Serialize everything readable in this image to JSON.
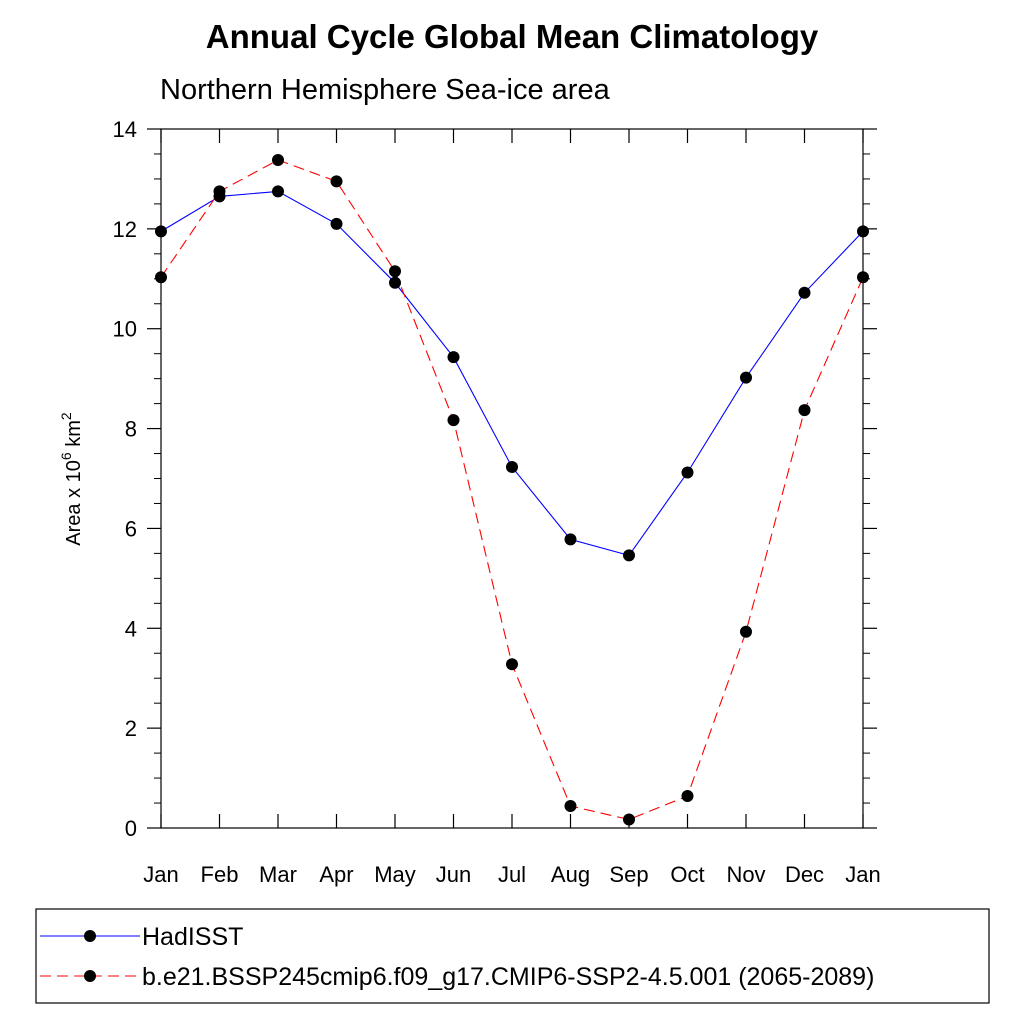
{
  "chart_data": {
    "type": "line",
    "title": "Annual Cycle Global Mean Climatology",
    "subtitle": "Northern Hemisphere Sea-ice area",
    "ylabel": {
      "base": "Area x 10",
      "exp1": "6",
      "unit": " km",
      "exp2": "2"
    },
    "categories": [
      "Jan",
      "Feb",
      "Mar",
      "Apr",
      "May",
      "Jun",
      "Jul",
      "Aug",
      "Sep",
      "Oct",
      "Nov",
      "Dec",
      "Jan"
    ],
    "yticks": [
      "0",
      "2",
      "4",
      "6",
      "8",
      "10",
      "12",
      "14"
    ],
    "ylim": [
      0,
      14
    ],
    "series": [
      {
        "name": "HadISST",
        "color": "#0000ff",
        "dash": "solid",
        "values": [
          11.95,
          12.65,
          12.75,
          12.1,
          10.92,
          9.43,
          7.23,
          5.78,
          5.46,
          7.12,
          9.02,
          10.72,
          11.95
        ]
      },
      {
        "name": "b.e21.BSSP245cmip6.f09_g17.CMIP6-SSP2-4.5.001 (2065-2089)",
        "color": "#ff0000",
        "dash": "dashed",
        "values": [
          11.03,
          12.75,
          13.38,
          12.95,
          11.15,
          8.17,
          3.28,
          0.44,
          0.17,
          0.64,
          3.93,
          8.37,
          11.03
        ]
      }
    ]
  }
}
